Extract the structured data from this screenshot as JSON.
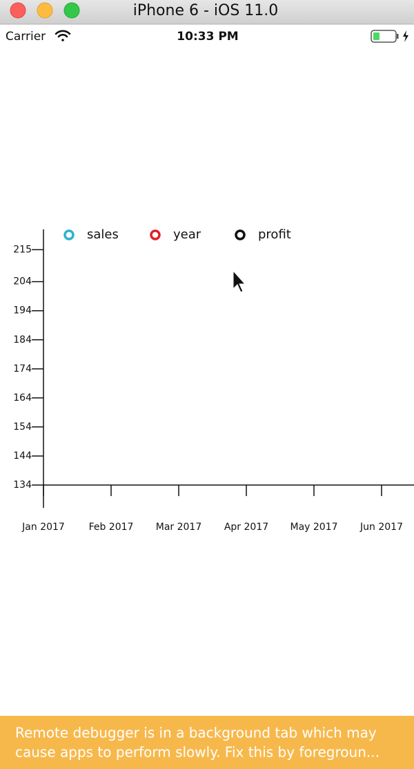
{
  "window": {
    "title": "iPhone 6 - iOS 11.0"
  },
  "status_bar": {
    "carrier": "Carrier",
    "time": "10:33 PM"
  },
  "chart_data": {
    "type": "line",
    "categories": [
      "Jan 2017",
      "Feb 2017",
      "Mar 2017",
      "Apr 2017",
      "May 2017",
      "Jun 2017"
    ],
    "series": [
      {
        "name": "sales",
        "color": "#2bb3cf",
        "values": [
          null,
          null,
          null,
          null,
          null,
          null
        ]
      },
      {
        "name": "year",
        "color": "#e0202a",
        "values": [
          null,
          null,
          null,
          null,
          null,
          null
        ]
      },
      {
        "name": "profit",
        "color": "#111111",
        "values": [
          null,
          null,
          null,
          null,
          null,
          null
        ]
      }
    ],
    "ylim": [
      134,
      222
    ],
    "yticks": [
      134,
      144,
      154,
      164,
      174,
      184,
      194,
      204,
      215
    ]
  },
  "footer": {
    "lines": [
      "Remote debugger is in a background tab which may",
      "cause apps to perform slowly. Fix this by foregroun..."
    ]
  }
}
